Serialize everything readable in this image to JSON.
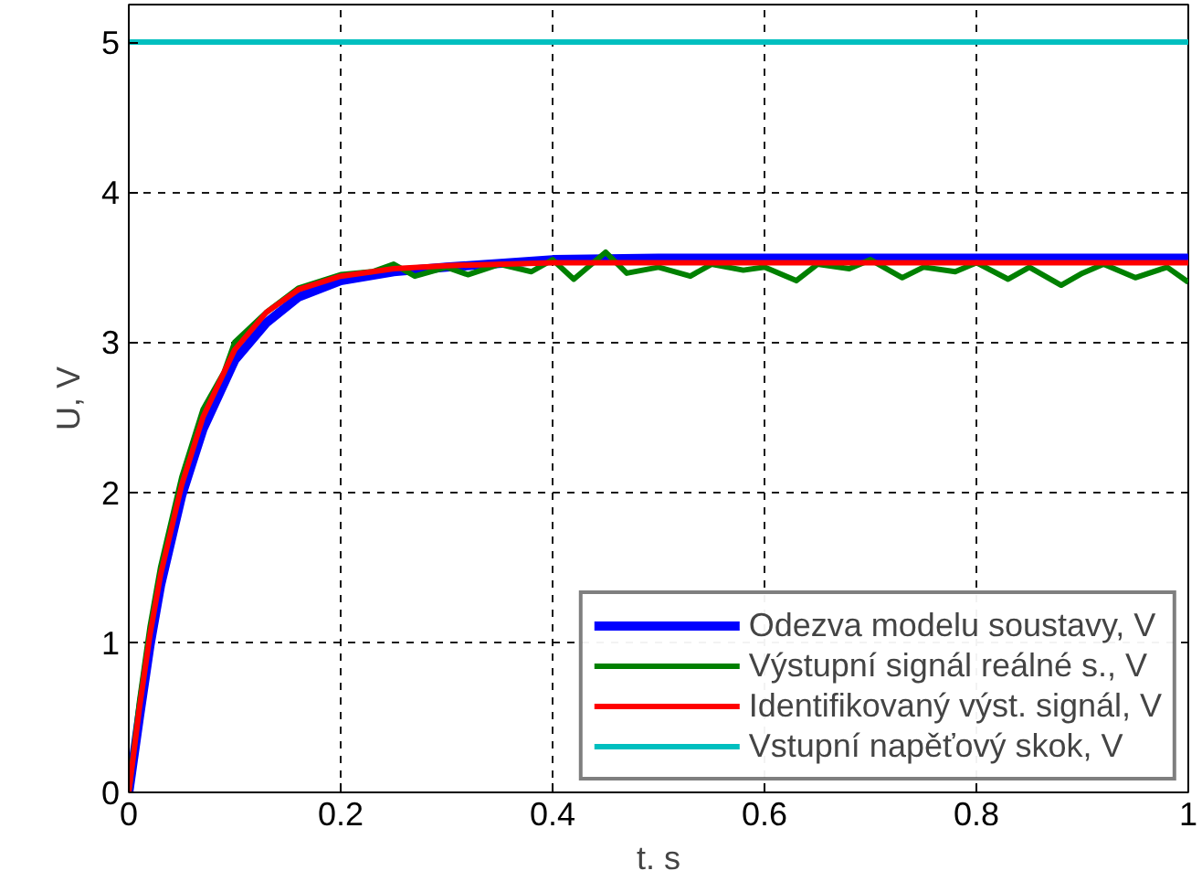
{
  "chart_data": {
    "type": "line",
    "xlabel": "t. s",
    "ylabel": "U, V",
    "xlim": [
      0,
      1
    ],
    "ylim": [
      0,
      5.25
    ],
    "xticks": [
      0,
      0.2,
      0.4,
      0.6,
      0.8,
      1
    ],
    "yticks": [
      0,
      1,
      2,
      3,
      4,
      5
    ],
    "grid": true,
    "legend": "bottom right",
    "line_style": "solid",
    "marker": "none",
    "series": [
      {
        "name": "Odezva modelu soustavy, V",
        "color": "#0000ff",
        "x": [
          0,
          0.01,
          0.02,
          0.03,
          0.05,
          0.07,
          0.1,
          0.13,
          0.16,
          0.2,
          0.25,
          0.3,
          0.4,
          0.5,
          0.7,
          1
        ],
        "values": [
          0,
          0.5,
          0.98,
          1.38,
          1.98,
          2.42,
          2.88,
          3.13,
          3.3,
          3.41,
          3.47,
          3.5,
          3.55,
          3.56,
          3.56,
          3.56
        ]
      },
      {
        "name": "Výstupní signál reálné s., V",
        "color": "#008000",
        "x": [
          0,
          0.01,
          0.02,
          0.03,
          0.05,
          0.07,
          0.09,
          0.1,
          0.13,
          0.16,
          0.2,
          0.23,
          0.25,
          0.27,
          0.3,
          0.32,
          0.35,
          0.38,
          0.4,
          0.42,
          0.45,
          0.47,
          0.5,
          0.53,
          0.55,
          0.58,
          0.6,
          0.63,
          0.65,
          0.68,
          0.7,
          0.73,
          0.75,
          0.78,
          0.8,
          0.83,
          0.85,
          0.88,
          0.9,
          0.92,
          0.95,
          0.98,
          1
        ],
        "values": [
          0,
          0.6,
          1.1,
          1.5,
          2.1,
          2.55,
          2.8,
          3.0,
          3.2,
          3.36,
          3.45,
          3.47,
          3.52,
          3.44,
          3.5,
          3.45,
          3.52,
          3.47,
          3.55,
          3.42,
          3.6,
          3.46,
          3.5,
          3.44,
          3.52,
          3.48,
          3.5,
          3.41,
          3.52,
          3.49,
          3.55,
          3.43,
          3.5,
          3.47,
          3.53,
          3.42,
          3.5,
          3.38,
          3.46,
          3.52,
          3.43,
          3.5,
          3.4
        ]
      },
      {
        "name": "Identifikovaný výst. signál, V",
        "color": "#ff0000",
        "x": [
          0,
          0.01,
          0.02,
          0.03,
          0.05,
          0.07,
          0.1,
          0.13,
          0.16,
          0.2,
          0.25,
          0.3,
          0.4,
          0.5,
          0.7,
          1
        ],
        "values": [
          0,
          0.56,
          1.05,
          1.45,
          2.05,
          2.5,
          2.95,
          3.2,
          3.35,
          3.44,
          3.49,
          3.51,
          3.53,
          3.53,
          3.53,
          3.53
        ]
      },
      {
        "name": "Vstupní napěťový skok, V",
        "color": "#00bfbf",
        "x": [
          0,
          1
        ],
        "values": [
          5,
          5
        ]
      }
    ]
  }
}
